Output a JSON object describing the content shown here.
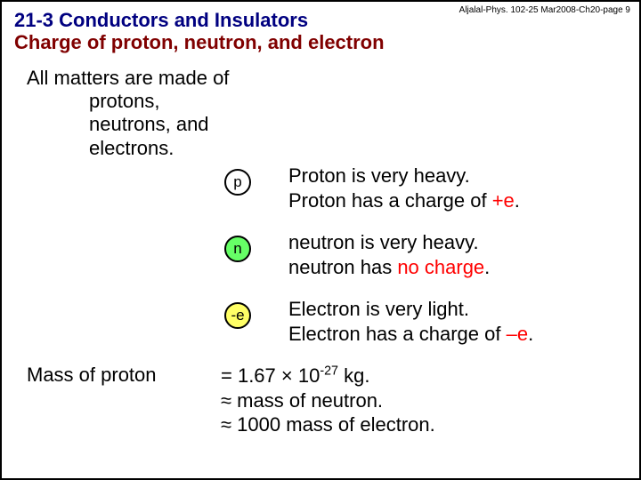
{
  "header_ref": "Aljalal-Phys. 102-25 Mar2008-Ch20-page 9",
  "section_title": "21-3 Conductors and Insulators",
  "subtitle": "Charge of proton, neutron, and electron",
  "intro_l1": "All matters are made of",
  "intro_l2": "protons,",
  "intro_l3": "neutrons, and",
  "intro_l4": "electrons.",
  "proton": {
    "symbol": "p",
    "bg": "#ffffff",
    "line1": "Proton is very heavy.",
    "line2a": "Proton has a charge of ",
    "line2b": "+e",
    "line2c": "."
  },
  "neutron": {
    "symbol": "n",
    "bg": "#66ff66",
    "line1": "neutron is very heavy.",
    "line2a": "neutron has ",
    "line2b": "no charge",
    "line2c": "."
  },
  "electron": {
    "symbol": "-e",
    "bg": "#ffff66",
    "line1": "Electron is very light.",
    "line2a": "Electron has a charge of ",
    "line2b": "–e",
    "line2c": "."
  },
  "mass_label": "Mass of proton",
  "mass_l1a": "= 1.67 × 10",
  "mass_l1_exp": "-27",
  "mass_l1b": " kg.",
  "mass_l2": "≈ mass of neutron.",
  "mass_l3": "≈ 1000 mass of electron."
}
